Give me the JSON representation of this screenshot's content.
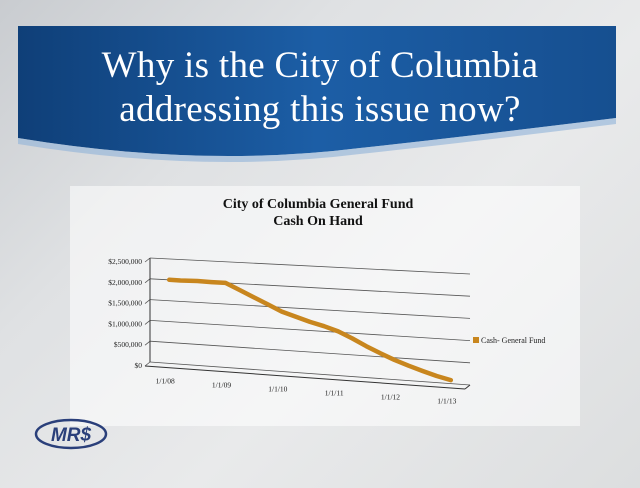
{
  "banner": {
    "line1": "Why is the City of Columbia",
    "line2": "addressing this issue now?"
  },
  "logo": {
    "text": "MR$"
  },
  "colors": {
    "banner": "#1d5aa0",
    "series": "#c8861e"
  },
  "chart_data": {
    "type": "line",
    "title": "City of Columbia General Fund",
    "subtitle": "Cash On Hand",
    "xlabel": "",
    "ylabel": "",
    "categories": [
      "1/1/08",
      "1/1/09",
      "1/1/10",
      "1/1/11",
      "1/1/12",
      "1/1/13"
    ],
    "x": [
      2008.0,
      2008.2,
      2008.5,
      2008.75,
      2009.0,
      2009.25,
      2009.5,
      2009.75,
      2010.0,
      2010.25,
      2010.5,
      2010.75,
      2011.0,
      2011.25,
      2011.5,
      2011.75,
      2012.0,
      2012.25,
      2012.5,
      2012.75,
      2013.0
    ],
    "series": [
      {
        "name": "Cash- General Fund",
        "values": [
          2000000,
          2000000,
          2010000,
          2000000,
          2000000,
          1850000,
          1700000,
          1550000,
          1400000,
          1300000,
          1200000,
          1120000,
          1020000,
          880000,
          720000,
          580000,
          450000,
          340000,
          240000,
          150000,
          80000
        ]
      }
    ],
    "yticks": [
      "$2,500,000",
      "$2,000,000",
      "$1,500,000",
      "$1,000,000",
      "$500,000",
      "$0"
    ],
    "ylim": [
      0,
      2500000
    ],
    "grid": true,
    "legend": "right"
  }
}
